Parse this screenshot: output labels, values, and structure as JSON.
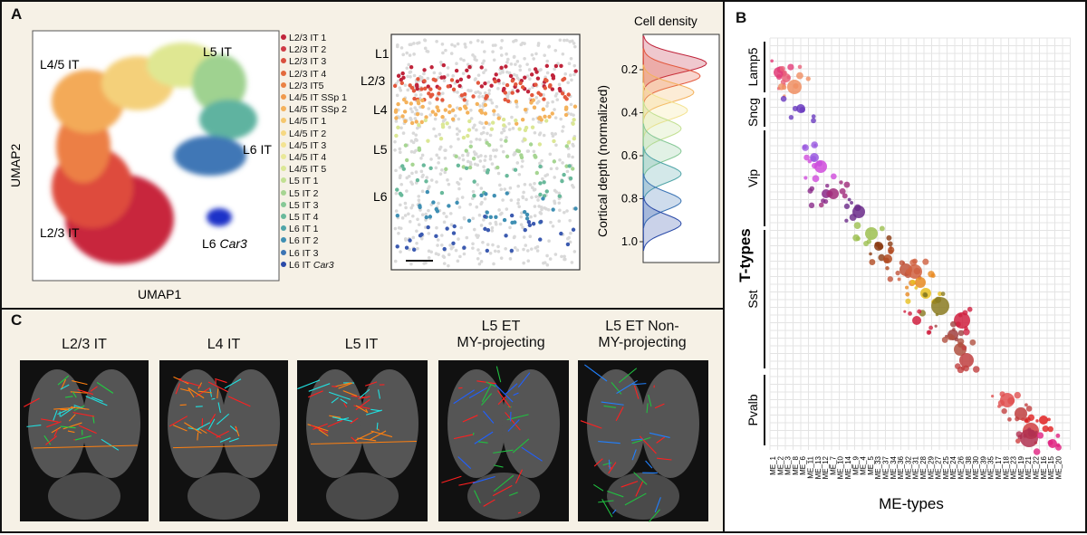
{
  "panel_labels": {
    "a": "A",
    "b": "B",
    "c": "C"
  },
  "umap": {
    "xlabel": "UMAP1",
    "ylabel": "UMAP2",
    "cluster_labels": [
      "L4/5 IT",
      "L5 IT",
      "L6 IT",
      "L2/3 IT",
      "L6"
    ],
    "car3_italic": "Car3"
  },
  "legend": {
    "items": [
      {
        "label": "L2/3 IT 1",
        "color": "#c0243b"
      },
      {
        "label": "L2/3 IT 2",
        "color": "#cf3b45"
      },
      {
        "label": "L2/3 IT 3",
        "color": "#d9503f"
      },
      {
        "label": "L2/3 IT 4",
        "color": "#e36a3d"
      },
      {
        "label": "L2/3 IT5",
        "color": "#ea8244"
      },
      {
        "label": "L4/5 IT SSp 1",
        "color": "#f09a4d"
      },
      {
        "label": "L4/5 IT SSp 2",
        "color": "#f4b25c"
      },
      {
        "label": "L4/5 IT 1",
        "color": "#f5c76e"
      },
      {
        "label": "L4/5 IT 2",
        "color": "#f6d882"
      },
      {
        "label": "L4/5 IT 3",
        "color": "#f3e391"
      },
      {
        "label": "L4/5 IT 4",
        "color": "#e9e898"
      },
      {
        "label": "L4/5 IT 5",
        "color": "#dbe795"
      },
      {
        "label": "L5 IT 1",
        "color": "#c2e092"
      },
      {
        "label": "L5 IT 2",
        "color": "#a6d592"
      },
      {
        "label": "L5 IT 3",
        "color": "#86c896"
      },
      {
        "label": "L5 IT 4",
        "color": "#69b99b"
      },
      {
        "label": "L6 IT 1",
        "color": "#50a5a8"
      },
      {
        "label": "L6 IT 2",
        "color": "#3f8fb3"
      },
      {
        "label": "L6 IT 3",
        "color": "#3b74b4"
      },
      {
        "label": "L6 IT",
        "color": "#2a4aa8"
      }
    ],
    "last_suffix": "Car3"
  },
  "depth_plot": {
    "layers": [
      "L1",
      "L2/3",
      "L4",
      "L5",
      "L6"
    ]
  },
  "density": {
    "title": "Cell density",
    "ylabel": "Cortical depth (normalized)",
    "ticks": [
      "0.2",
      "0.4",
      "0.6",
      "0.8",
      "1.0"
    ]
  },
  "chart_data": {
    "type": "scatter",
    "title": "",
    "xlabel": "ME-types",
    "ylabel": "T-types",
    "row_groups": [
      "Lamp5",
      "Sncg",
      "Vip",
      "Sst",
      "Pvalb"
    ],
    "x_tick_labels": [
      "ME_1",
      "ME_2",
      "ME_3",
      "ME_8",
      "ME_6",
      "ME_11",
      "ME_13",
      "ME_12",
      "ME_7",
      "ME_10",
      "ME_14",
      "ME_9",
      "ME_4",
      "ME_5",
      "ME_33",
      "ME_37",
      "ME_34",
      "ME_36",
      "ME_32",
      "ME_31",
      "ME_28",
      "ME_29",
      "ME_27",
      "ME_25",
      "ME_24",
      "ME_26",
      "ME_38",
      "ME_30",
      "ME_39",
      "ME_35",
      "ME_17",
      "ME_18",
      "ME_23",
      "ME_19",
      "ME_21",
      "ME_22",
      "ME_16",
      "ME_15",
      "ME_20"
    ],
    "points_note": "dot position = (ME-type column, T-type row); size = cell count"
  },
  "brains": [
    {
      "title1": "L2/3 IT",
      "title2": ""
    },
    {
      "title1": "L4 IT",
      "title2": ""
    },
    {
      "title1": "L5 IT",
      "title2": ""
    },
    {
      "title1": "L5 ET",
      "title2": "MY-projecting"
    },
    {
      "title1": "L5 ET Non-",
      "title2": "MY-projecting"
    }
  ]
}
